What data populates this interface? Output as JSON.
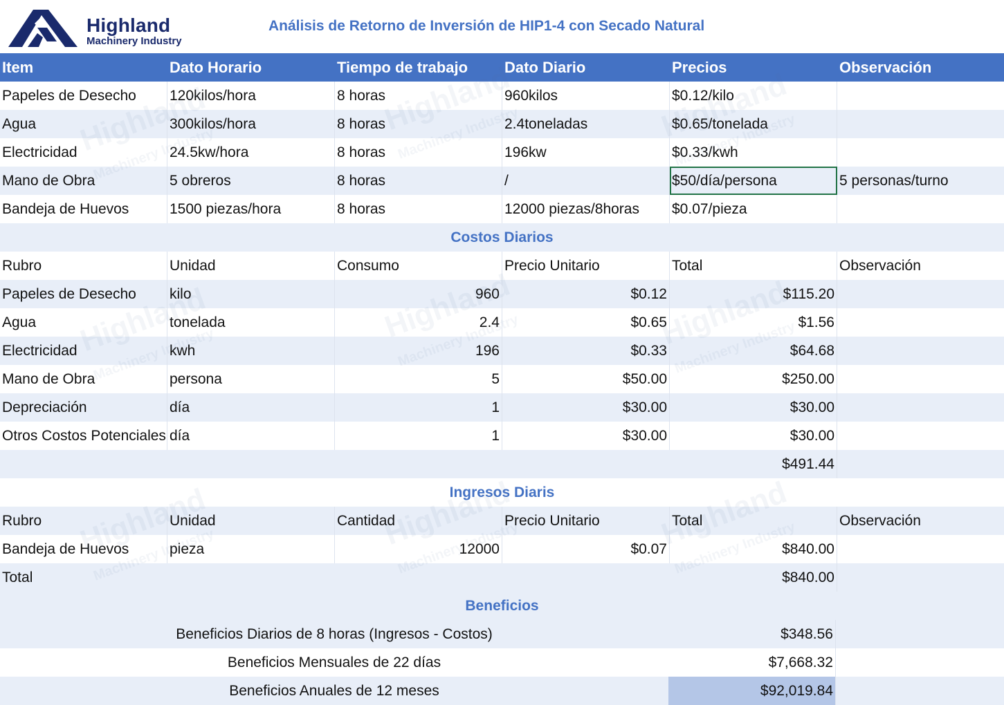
{
  "brand": {
    "name": "Highland",
    "subtitle": "Machinery Industry"
  },
  "title": "Análisis de Retorno de Inversión de HIP1-4 con Secado Natural",
  "colors": {
    "header_blue": "#4472c4",
    "band": "#e8eef8",
    "highlight": "#b4c6e7",
    "navy": "#1a2a6c"
  },
  "main_table": {
    "headers": [
      "Item",
      "Dato Horario",
      "Tiempo de trabajo",
      "Dato Diario",
      "Precios",
      "Observación"
    ],
    "rows": [
      [
        "Papeles de Desecho",
        "120kilos/hora",
        "8 horas",
        "960kilos",
        "$0.12/kilo",
        ""
      ],
      [
        "Agua",
        "300kilos/hora",
        "8 horas",
        "2.4toneladas",
        "$0.65/tonelada",
        ""
      ],
      [
        "Electricidad",
        "24.5kw/hora",
        "8 horas",
        "196kw",
        "$0.33/kwh",
        ""
      ],
      [
        "Mano de Obra",
        "5 obreros",
        "8 horas",
        "/",
        "$50/día/persona",
        "5 personas/turno"
      ],
      [
        "Bandeja de Huevos",
        "1500 piezas/hora",
        "8 horas",
        "12000 piezas/8horas",
        "$0.07/pieza",
        ""
      ]
    ]
  },
  "costs": {
    "title": "Costos Diarios",
    "headers": [
      "Rubro",
      "Unidad",
      "Consumo",
      "Precio Unitario",
      "Total",
      "Observación"
    ],
    "rows": [
      [
        "Papeles de Desecho",
        "kilo",
        "960",
        "$0.12",
        "$115.20",
        ""
      ],
      [
        "Agua",
        "tonelada",
        "2.4",
        "$0.65",
        "$1.56",
        ""
      ],
      [
        "Electricidad",
        "kwh",
        "196",
        "$0.33",
        "$64.68",
        ""
      ],
      [
        "Mano de Obra",
        "persona",
        "5",
        "$50.00",
        "$250.00",
        ""
      ],
      [
        "Depreciación",
        "día",
        "1",
        "$30.00",
        "$30.00",
        ""
      ],
      [
        "Otros Costos Potenciales",
        "día",
        "1",
        "$30.00",
        "$30.00",
        ""
      ]
    ],
    "total": "$491.44"
  },
  "income": {
    "title": "Ingresos Diaris",
    "headers": [
      "Rubro",
      "Unidad",
      "Cantidad",
      "Precio Unitario",
      "Total",
      "Observación"
    ],
    "rows": [
      [
        "Bandeja de Huevos",
        "pieza",
        "12000",
        "$0.07",
        "$840.00",
        ""
      ]
    ],
    "total_label": "Total",
    "total": "$840.00"
  },
  "benefits": {
    "title": "Beneficios",
    "rows": [
      {
        "label": "Beneficios Diarios de 8 horas (Ingresos - Costos)",
        "value": "$348.56"
      },
      {
        "label": "Beneficios Mensuales de 22 días",
        "value": "$7,668.32"
      },
      {
        "label": "Beneficios Anuales de 12 meses",
        "value": "$92,019.84"
      }
    ]
  },
  "watermark": {
    "line1": "Highland",
    "line2": "Machinery Industry"
  }
}
